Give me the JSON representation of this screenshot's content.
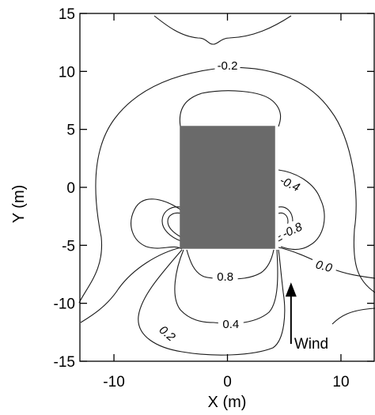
{
  "chart_data": {
    "type": "contour",
    "title": "",
    "xlabel": "X (m)",
    "ylabel": "Y (m)",
    "xlim": [
      -13,
      13
    ],
    "ylim": [
      -15,
      15
    ],
    "x_ticks": [
      -10,
      0,
      10
    ],
    "y_ticks": [
      15,
      10,
      5,
      0,
      -5,
      -10,
      -15
    ],
    "x_tick_labels": [
      "-10",
      "0",
      "10"
    ],
    "y_tick_labels": [
      "15",
      "10",
      "5",
      "0",
      "-5",
      "-10",
      "-15"
    ],
    "grid": false,
    "obstacle": {
      "x": [
        -4.2,
        4.2
      ],
      "y": [
        -5.3,
        5.3
      ],
      "color": "#6a6a6a"
    },
    "contour_labels": [
      {
        "text": "-0.2",
        "x": 0.0,
        "y": 10.5,
        "rotate": 0
      },
      {
        "text": "-0.4",
        "x": 5.5,
        "y": 0.3,
        "rotate": 25
      },
      {
        "text": "-0.8",
        "x": 5.7,
        "y": -3.7,
        "rotate": -25
      },
      {
        "text": "0.0",
        "x": 8.5,
        "y": -6.8,
        "rotate": 15
      },
      {
        "text": "0.8",
        "x": -0.2,
        "y": -7.7,
        "rotate": 0
      },
      {
        "text": "0.4",
        "x": 0.3,
        "y": -11.8,
        "rotate": 0
      },
      {
        "text": "0.2",
        "x": -5.3,
        "y": -12.6,
        "rotate": 40
      }
    ],
    "wind": {
      "label": "Wind",
      "x": 5.6,
      "y_tail": -13.5,
      "y_head": -8.2
    }
  }
}
